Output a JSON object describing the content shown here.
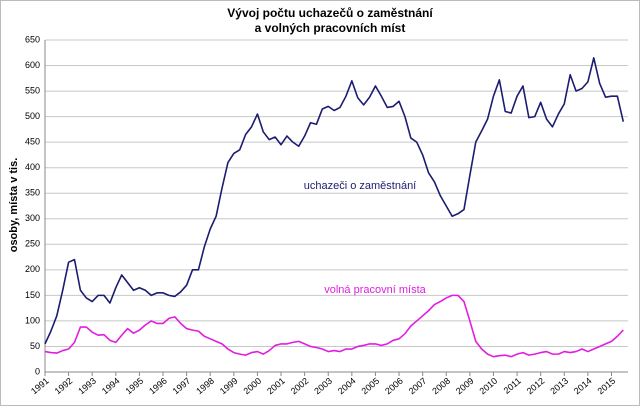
{
  "chart_data": {
    "type": "line",
    "title": [
      "Vývoj počtu uchazečů  o zaměstnání",
      "a volných  pracovních  míst"
    ],
    "y_label": "osoby, místa v tis.",
    "annotations": [
      "uchazeči o zaměstnání",
      "volná pracovní místa"
    ],
    "x": [
      1991,
      1991.25,
      1991.5,
      1991.75,
      1992,
      1992.25,
      1992.5,
      1992.75,
      1993,
      1993.25,
      1993.5,
      1993.75,
      1994,
      1994.25,
      1994.5,
      1994.75,
      1995,
      1995.25,
      1995.5,
      1995.75,
      1996,
      1996.25,
      1996.5,
      1996.75,
      1997,
      1997.25,
      1997.5,
      1997.75,
      1998,
      1998.25,
      1998.5,
      1998.75,
      1999,
      1999.25,
      1999.5,
      1999.75,
      2000,
      2000.25,
      2000.5,
      2000.75,
      2001,
      2001.25,
      2001.5,
      2001.75,
      2002,
      2002.25,
      2002.5,
      2002.75,
      2003,
      2003.25,
      2003.5,
      2003.75,
      2004,
      2004.25,
      2004.5,
      2004.75,
      2005,
      2005.25,
      2005.5,
      2005.75,
      2006,
      2006.25,
      2006.5,
      2006.75,
      2007,
      2007.25,
      2007.5,
      2007.75,
      2008,
      2008.25,
      2008.5,
      2008.75,
      2009,
      2009.25,
      2009.5,
      2009.75,
      2010,
      2010.25,
      2010.5,
      2010.75,
      2011,
      2011.25,
      2011.5,
      2011.75,
      2012,
      2012.25,
      2012.5,
      2012.75,
      2013,
      2013.25,
      2013.5,
      2013.75,
      2014,
      2014.25,
      2014.5,
      2014.75,
      2015,
      2015.25,
      2015.5
    ],
    "series": [
      {
        "name": "uchazeči o zaměstnání",
        "color": "#1c1c70",
        "values": [
          55,
          80,
          110,
          160,
          215,
          220,
          160,
          145,
          138,
          150,
          150,
          135,
          165,
          190,
          175,
          160,
          165,
          160,
          150,
          155,
          155,
          150,
          148,
          157,
          170,
          200,
          200,
          245,
          280,
          305,
          360,
          410,
          428,
          435,
          465,
          480,
          505,
          470,
          455,
          460,
          445,
          462,
          450,
          442,
          462,
          488,
          485,
          515,
          520,
          512,
          518,
          540,
          570,
          537,
          523,
          538,
          560,
          540,
          518,
          520,
          530,
          500,
          458,
          450,
          425,
          390,
          372,
          345,
          325,
          305,
          310,
          318,
          385,
          450,
          472,
          495,
          540,
          572,
          510,
          507,
          540,
          560,
          498,
          500,
          528,
          495,
          480,
          505,
          525,
          582,
          550,
          555,
          568,
          615,
          565,
          538,
          540,
          540,
          490
        ]
      },
      {
        "name": "volná pracovní místa",
        "color": "#e01ee0",
        "values": [
          40,
          38,
          37,
          42,
          45,
          58,
          88,
          88,
          78,
          72,
          73,
          62,
          58,
          72,
          85,
          76,
          82,
          92,
          100,
          95,
          95,
          105,
          108,
          95,
          85,
          82,
          80,
          70,
          65,
          60,
          55,
          45,
          38,
          35,
          33,
          38,
          40,
          35,
          42,
          52,
          55,
          55,
          58,
          60,
          55,
          50,
          48,
          45,
          40,
          42,
          40,
          45,
          45,
          50,
          52,
          55,
          55,
          52,
          55,
          62,
          65,
          75,
          90,
          100,
          110,
          120,
          132,
          138,
          145,
          150,
          150,
          138,
          100,
          60,
          45,
          35,
          30,
          32,
          33,
          30,
          35,
          38,
          33,
          35,
          38,
          40,
          35,
          35,
          40,
          38,
          40,
          45,
          40,
          45,
          50,
          55,
          60,
          70,
          82
        ]
      }
    ],
    "xlim": [
      1991,
      2015.7
    ],
    "xticks": [
      1991,
      1992,
      1993,
      1994,
      1995,
      1996,
      1997,
      1998,
      1999,
      2000,
      2001,
      2002,
      2003,
      2004,
      2005,
      2006,
      2007,
      2008,
      2009,
      2010,
      2011,
      2012,
      2013,
      2014,
      2015
    ],
    "ylim": [
      0,
      650
    ],
    "yticks": [
      0,
      50,
      100,
      150,
      200,
      250,
      300,
      350,
      400,
      450,
      500,
      550,
      600,
      650
    ],
    "grid": true
  }
}
